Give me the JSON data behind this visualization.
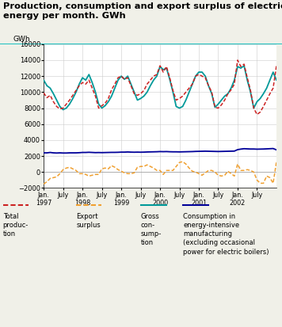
{
  "title": "Production, consumption and export surplus of electric\nenergy per month. GWh",
  "ylabel": "GWh",
  "ylim": [
    -2000,
    16000
  ],
  "yticks": [
    -2000,
    0,
    2000,
    4000,
    6000,
    8000,
    10000,
    12000,
    14000,
    16000
  ],
  "bg_color": "#f0f0e8",
  "plot_bg": "#ffffff",
  "teal_color": "#009999",
  "red_color": "#cc2222",
  "orange_color": "#f0a030",
  "blue_color": "#000099",
  "title_line_color": "#00bbbb",
  "total_production": [
    9900,
    9300,
    9600,
    8800,
    8200,
    7900,
    8000,
    8500,
    9000,
    9600,
    10200,
    10800,
    11200,
    11000,
    11500,
    10500,
    9500,
    8000,
    8300,
    8600,
    9200,
    10300,
    11000,
    11800,
    12000,
    11600,
    11800,
    10800,
    9800,
    9600,
    9800,
    10200,
    11000,
    11500,
    12000,
    12200,
    13300,
    12500,
    13200,
    11800,
    10200,
    9000,
    9200,
    9500,
    10000,
    10500,
    11000,
    12000,
    12200,
    12000,
    11800,
    10800,
    10000,
    8100,
    8000,
    8400,
    9000,
    9800,
    10300,
    11000,
    14000,
    13200,
    13500,
    11800,
    10200,
    8000,
    7200,
    7500,
    8200,
    9000,
    9800,
    10500,
    13200,
    12600,
    11900
  ],
  "gross_consumption": [
    11500,
    10800,
    10500,
    9800,
    9000,
    8200,
    7800,
    8000,
    8500,
    9200,
    10000,
    11000,
    11800,
    11500,
    12200,
    11200,
    10000,
    8500,
    8000,
    8300,
    8800,
    9500,
    10500,
    11500,
    12000,
    11600,
    12000,
    11000,
    10000,
    9000,
    9200,
    9500,
    10000,
    10800,
    11500,
    12000,
    13200,
    12800,
    13000,
    11600,
    10000,
    8200,
    8000,
    8200,
    9000,
    10000,
    11000,
    12000,
    12500,
    12500,
    12000,
    10800,
    9800,
    8100,
    8500,
    9000,
    9500,
    9800,
    10500,
    11500,
    13200,
    13000,
    13300,
    11500,
    10000,
    8000,
    8800,
    9200,
    9800,
    10500,
    11500,
    12500,
    11500,
    11200,
    11500
  ],
  "export_surplus": [
    -1500,
    -1200,
    -800,
    -700,
    -600,
    -200,
    300,
    500,
    600,
    400,
    200,
    -200,
    -200,
    -300,
    -500,
    -400,
    -300,
    -300,
    400,
    500,
    400,
    800,
    600,
    300,
    100,
    -100,
    -200,
    -200,
    -100,
    600,
    700,
    700,
    900,
    700,
    500,
    200,
    200,
    -300,
    200,
    200,
    200,
    700,
    1200,
    1300,
    1000,
    500,
    100,
    0,
    -200,
    -400,
    -100,
    200,
    200,
    0,
    -400,
    -500,
    -400,
    100,
    -200,
    -500,
    1000,
    200,
    200,
    300,
    200,
    0,
    -1000,
    -1400,
    -1400,
    -500,
    -700,
    -1400,
    1200,
    1200,
    400
  ],
  "consumption_intensive": [
    2400,
    2400,
    2450,
    2400,
    2380,
    2400,
    2380,
    2380,
    2400,
    2400,
    2400,
    2420,
    2450,
    2450,
    2470,
    2450,
    2430,
    2440,
    2430,
    2440,
    2450,
    2460,
    2460,
    2470,
    2490,
    2490,
    2510,
    2490,
    2480,
    2490,
    2480,
    2490,
    2510,
    2520,
    2530,
    2540,
    2560,
    2550,
    2560,
    2540,
    2530,
    2530,
    2520,
    2530,
    2540,
    2550,
    2560,
    2580,
    2590,
    2600,
    2610,
    2600,
    2590,
    2580,
    2570,
    2580,
    2590,
    2600,
    2610,
    2620,
    2800,
    2870,
    2920,
    2900,
    2880,
    2880,
    2860,
    2870,
    2880,
    2900,
    2920,
    2940,
    2780,
    2760,
    2730
  ],
  "xtick_positions": [
    0,
    6,
    12,
    18,
    24,
    30,
    36,
    42,
    48,
    54,
    60,
    66
  ],
  "xtick_labels": [
    "Jan.\n1997",
    "July",
    "Jan.\n1998",
    "July",
    "Jan.\n1999",
    "July",
    "Jan.\n2000",
    "July",
    "Jan.\n2001",
    "July",
    "Jan.\n2002",
    "July"
  ]
}
